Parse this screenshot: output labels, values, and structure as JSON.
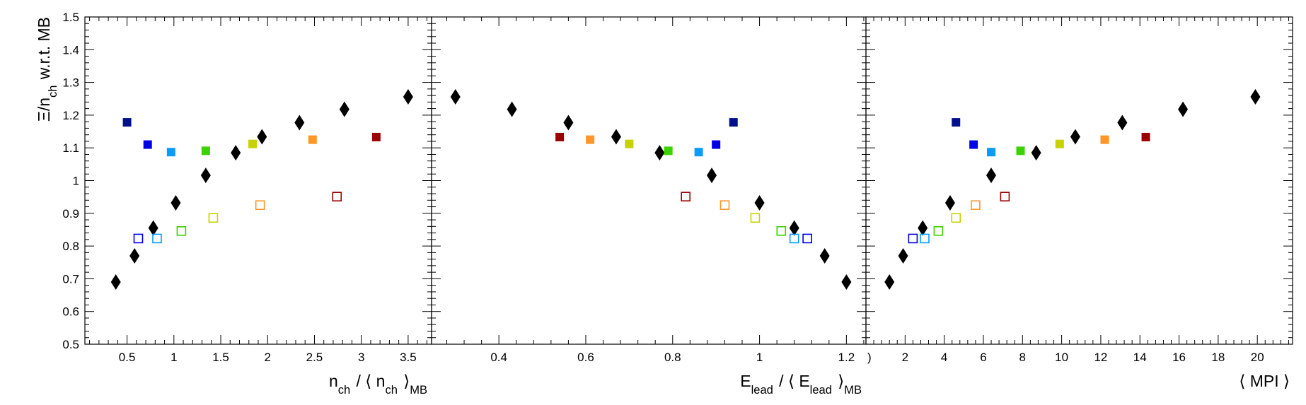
{
  "chart_data": {
    "type": "scatter",
    "ylabel": "Ξ/n_ch w.r.t. MB",
    "ylim": [
      0.5,
      1.5
    ],
    "yticks": [
      0.5,
      0.6,
      0.7,
      0.8,
      0.9,
      1,
      1.1,
      1.2,
      1.3,
      1.4,
      1.5
    ],
    "ytick_labels": [
      "0.5",
      "0.6",
      "0.7",
      "0.8",
      "0.9",
      "1",
      "1.1",
      "1.2",
      "1.3",
      "1.4",
      "1.5"
    ],
    "marker_colors": [
      "#00108c",
      "#0000e6",
      "#0a9bff",
      "#3cd200",
      "#c8d200",
      "#ff9628",
      "#9b0000"
    ],
    "black_marker_color": "#000000",
    "panels": [
      {
        "xlabel": "n_ch / ⟨ n_ch ⟩_MB",
        "xlim": [
          0.05,
          3.75
        ],
        "xticks": [
          0.5,
          1,
          1.5,
          2,
          2.5,
          3,
          3.5
        ],
        "xtick_labels": [
          "0.5",
          "1",
          "1.5",
          "2",
          "2.5",
          "3",
          "3.5"
        ],
        "black": {
          "x": [
            0.38,
            0.58,
            0.78,
            1.02,
            1.34,
            1.66,
            1.94,
            2.34,
            2.82,
            3.5
          ],
          "y": [
            0.69,
            0.77,
            0.855,
            0.932,
            1.016,
            1.085,
            1.134,
            1.177,
            1.218,
            1.256
          ]
        },
        "filled": {
          "x": [
            0.5,
            0.72,
            0.97,
            1.34,
            1.84,
            2.48,
            3.16
          ],
          "y": [
            1.178,
            1.11,
            1.087,
            1.091,
            1.112,
            1.125,
            1.133
          ]
        },
        "open": {
          "x": [
            0.62,
            0.82,
            1.08,
            1.42,
            1.92,
            2.74
          ],
          "y": [
            0.823,
            0.823,
            0.846,
            0.886,
            0.925,
            0.951
          ]
        }
      },
      {
        "xlabel": "E_lead / ⟨ E_lead ⟩_MB",
        "xlim": [
          0.245,
          1.245
        ],
        "xticks": [
          0.4,
          0.6,
          0.8,
          1,
          1.2
        ],
        "xtick_labels": [
          "0.4",
          "0.6",
          "0.8",
          "1",
          "1.2"
        ],
        "black": {
          "x": [
            0.3,
            0.43,
            0.56,
            0.67,
            0.77,
            0.89,
            1.0,
            1.08,
            1.15,
            1.2
          ],
          "y": [
            1.256,
            1.218,
            1.177,
            1.134,
            1.085,
            1.016,
            0.932,
            0.855,
            0.77,
            0.69
          ]
        },
        "filled": {
          "x": [
            0.94,
            0.9,
            0.86,
            0.79,
            0.7,
            0.61,
            0.54
          ],
          "y": [
            1.178,
            1.11,
            1.087,
            1.091,
            1.112,
            1.125,
            1.133
          ]
        },
        "open": {
          "x": [
            1.11,
            1.08,
            1.05,
            0.99,
            0.92,
            0.83
          ],
          "y": [
            0.823,
            0.823,
            0.846,
            0.886,
            0.925,
            0.951
          ]
        }
      },
      {
        "xlabel": "⟨ MPI ⟩",
        "xlim": [
          0.0,
          21.8
        ],
        "xticks": [
          2,
          4,
          6,
          8,
          10,
          12,
          14,
          16,
          18,
          20
        ],
        "xtick_labels": [
          "2",
          "4",
          "6",
          "8",
          "10",
          "12",
          "14",
          "16",
          "18",
          "20"
        ],
        "edge_label": ")",
        "black": {
          "x": [
            1.2,
            1.9,
            2.9,
            4.3,
            6.4,
            8.7,
            10.7,
            13.1,
            16.2,
            19.9
          ],
          "y": [
            0.69,
            0.77,
            0.855,
            0.932,
            1.016,
            1.085,
            1.134,
            1.177,
            1.218,
            1.256
          ]
        },
        "filled": {
          "x": [
            4.6,
            5.5,
            6.4,
            7.9,
            9.9,
            12.2,
            14.3
          ],
          "y": [
            1.178,
            1.11,
            1.087,
            1.091,
            1.112,
            1.125,
            1.133
          ]
        },
        "open": {
          "x": [
            2.4,
            3.0,
            3.7,
            4.6,
            5.6,
            7.1
          ],
          "y": [
            0.823,
            0.823,
            0.846,
            0.886,
            0.925,
            0.951
          ]
        }
      }
    ]
  }
}
